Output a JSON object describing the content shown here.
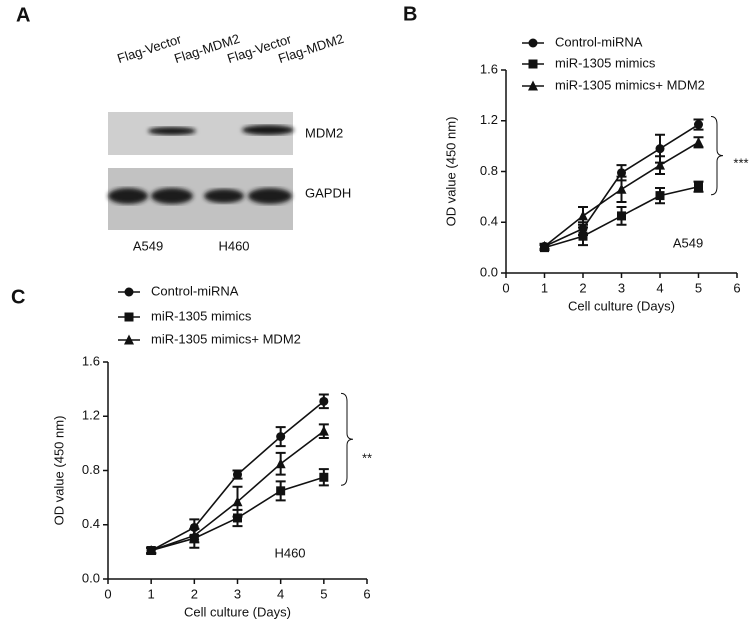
{
  "panel_a": {
    "panel_label": "A",
    "lanes": [
      "Flag-Vector",
      "Flag-MDM2",
      "Flag-Vector",
      "Flag-MDM2"
    ],
    "blots": [
      "MDM2",
      "GAPDH"
    ],
    "cell_lines": [
      "A549",
      "H460"
    ]
  },
  "chart_data": [
    {
      "type": "line",
      "panel_label": "B",
      "annotation": "A549",
      "significance": "***",
      "xlabel": "Cell culture (Days)",
      "ylabel": "OD value (450 nm)",
      "x": [
        1,
        2,
        3,
        4,
        5
      ],
      "xlim": [
        0,
        6
      ],
      "xticks": [
        0,
        1,
        2,
        3,
        4,
        5,
        6
      ],
      "ylim": [
        0,
        1.6
      ],
      "yticks": [
        {
          "value": 0,
          "label": "0.0"
        },
        0.4,
        0.8,
        1.2,
        1.6
      ],
      "series": [
        {
          "name": "Control-miRNA",
          "color": "#111111",
          "marker": "circle",
          "values": [
            0.21,
            0.35,
            0.79,
            0.98,
            1.17
          ],
          "errors": [
            0.02,
            0.05,
            0.06,
            0.11,
            0.04
          ]
        },
        {
          "name": "miR-1305 mimics",
          "color": "#111111",
          "marker": "square",
          "values": [
            0.2,
            0.29,
            0.45,
            0.61,
            0.68
          ],
          "errors": [
            0.02,
            0.07,
            0.07,
            0.06,
            0.04
          ]
        },
        {
          "name": "miR-1305 mimics+ MDM2",
          "color": "#111111",
          "marker": "triangle",
          "values": [
            0.21,
            0.45,
            0.66,
            0.85,
            1.03
          ],
          "errors": [
            0.02,
            0.07,
            0.1,
            0.07,
            0.04
          ]
        }
      ]
    },
    {
      "type": "line",
      "panel_label": "C",
      "annotation": "H460",
      "significance": "**",
      "xlabel": "Cell culture (Days)",
      "ylabel": "OD value (450 nm)",
      "x": [
        1,
        2,
        3,
        4,
        5
      ],
      "xlim": [
        0,
        6
      ],
      "xticks": [
        0,
        1,
        2,
        3,
        4,
        5,
        6
      ],
      "ylim": [
        0,
        1.6
      ],
      "yticks": [
        {
          "value": 0,
          "label": "0.0"
        },
        0.4,
        0.8,
        1.2,
        1.6
      ],
      "series": [
        {
          "name": "Control-miRNA",
          "color": "#111111",
          "marker": "circle",
          "values": [
            0.21,
            0.38,
            0.77,
            1.05,
            1.31
          ],
          "errors": [
            0.02,
            0.06,
            0.03,
            0.07,
            0.05
          ]
        },
        {
          "name": "miR-1305 mimics",
          "color": "#111111",
          "marker": "square",
          "values": [
            0.21,
            0.3,
            0.45,
            0.65,
            0.75
          ],
          "errors": [
            0.02,
            0.07,
            0.06,
            0.07,
            0.06
          ]
        },
        {
          "name": "miR-1305 mimics+ MDM2",
          "color": "#111111",
          "marker": "triangle",
          "values": [
            0.21,
            0.32,
            0.57,
            0.85,
            1.09
          ],
          "errors": [
            0.02,
            0.05,
            0.11,
            0.08,
            0.05
          ]
        }
      ]
    }
  ]
}
